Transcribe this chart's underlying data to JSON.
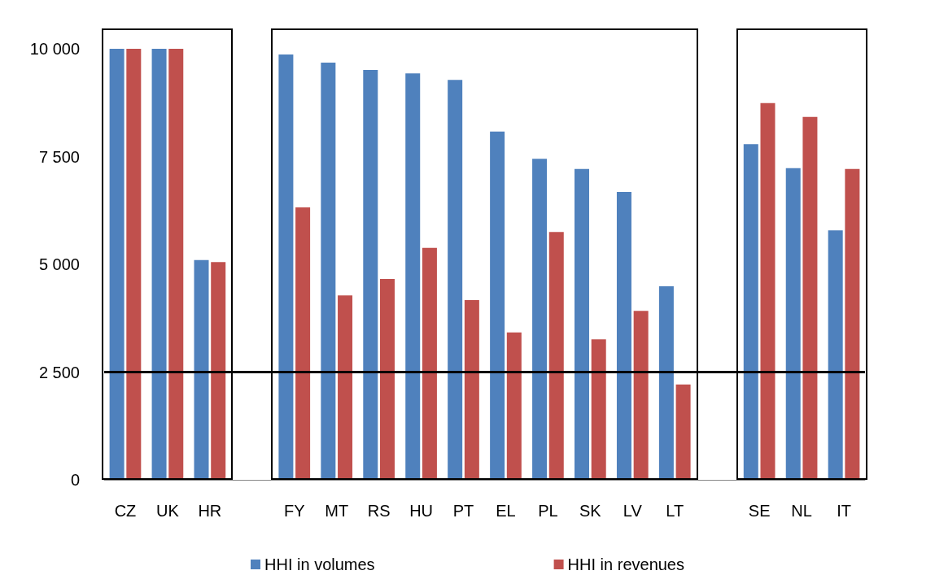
{
  "chart_data": {
    "type": "bar",
    "categories": [
      "CZ",
      "UK",
      "HR",
      null,
      "FY",
      "MT",
      "RS",
      "HU",
      "PT",
      "EL",
      "PL",
      "SK",
      "LV",
      "LT",
      null,
      "SE",
      "NL",
      "IT"
    ],
    "series": [
      {
        "name": "HHI in volumes",
        "color": "#4f81bd",
        "values": [
          10000,
          10000,
          5100,
          null,
          9870,
          9680,
          9510,
          9430,
          9280,
          8080,
          7450,
          7210,
          6680,
          4490,
          null,
          7790,
          7230,
          5790
        ]
      },
      {
        "name": "HHI in revenues",
        "color": "#c0504d",
        "values": [
          10000,
          10000,
          5050,
          null,
          6320,
          4280,
          4660,
          5380,
          4170,
          3420,
          5750,
          3260,
          3920,
          2210,
          null,
          8740,
          8420,
          7210
        ]
      }
    ],
    "ylim": [
      0,
      10000
    ],
    "yticks": [
      0,
      {
        "value": 2500,
        "label": "2 500"
      },
      {
        "value": 5000,
        "label": "5 000"
      },
      {
        "value": 7500,
        "label": "7 500"
      },
      {
        "value": 10000,
        "label": "10 000"
      }
    ],
    "ref_lines": [
      {
        "axis": "y",
        "value": 2500,
        "color": "#000000"
      }
    ],
    "grid": false,
    "legend": "bottom"
  }
}
